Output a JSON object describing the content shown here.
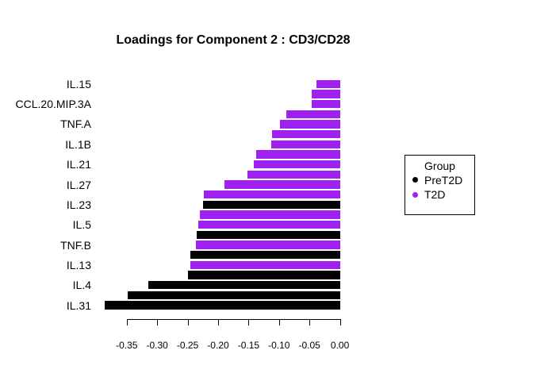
{
  "title": "Loadings for Component 2 : CD3/CD28",
  "legend": {
    "title": "Group",
    "entries": [
      {
        "label": "PreT2D",
        "color": "#000000"
      },
      {
        "label": "T2D",
        "color": "#A020F0"
      }
    ]
  },
  "chart_data": {
    "type": "bar",
    "orientation": "horizontal",
    "title": "Loadings for Component 2 : CD3/CD28",
    "xlabel": "",
    "ylabel": "",
    "xlim": [
      -0.35,
      0.0
    ],
    "grid": false,
    "legend_position": "right-outside",
    "x_ticks": [
      "-0.35",
      "-0.30",
      "-0.25",
      "-0.20",
      "-0.15",
      "-0.10",
      "-0.05",
      "0.00"
    ],
    "x_tick_values": [
      -0.35,
      -0.3,
      -0.25,
      -0.2,
      -0.15,
      -0.1,
      -0.05,
      0.0
    ],
    "note": "23 bars sorted by loading; only every other bar is labeled on the axis",
    "groups": {
      "PreT2D": "#000000",
      "T2D": "#A020F0"
    },
    "bars": [
      {
        "label": "IL.15",
        "value": -0.038,
        "group": "T2D"
      },
      {
        "label": "",
        "value": -0.046,
        "group": "T2D"
      },
      {
        "label": "CCL.20.MIP.3A",
        "value": -0.047,
        "group": "T2D"
      },
      {
        "label": "",
        "value": -0.088,
        "group": "T2D"
      },
      {
        "label": "TNF.A",
        "value": -0.099,
        "group": "T2D"
      },
      {
        "label": "",
        "value": -0.112,
        "group": "T2D"
      },
      {
        "label": "IL.1B",
        "value": -0.113,
        "group": "T2D"
      },
      {
        "label": "",
        "value": -0.138,
        "group": "T2D"
      },
      {
        "label": "IL.21",
        "value": -0.141,
        "group": "T2D"
      },
      {
        "label": "",
        "value": -0.152,
        "group": "T2D"
      },
      {
        "label": "IL.27",
        "value": -0.19,
        "group": "T2D"
      },
      {
        "label": "",
        "value": -0.223,
        "group": "T2D"
      },
      {
        "label": "IL.23",
        "value": -0.225,
        "group": "PreT2D"
      },
      {
        "label": "",
        "value": -0.23,
        "group": "T2D"
      },
      {
        "label": "IL.5",
        "value": -0.232,
        "group": "T2D"
      },
      {
        "label": "",
        "value": -0.235,
        "group": "PreT2D"
      },
      {
        "label": "TNF.B",
        "value": -0.236,
        "group": "T2D"
      },
      {
        "label": "",
        "value": -0.245,
        "group": "PreT2D"
      },
      {
        "label": "IL.13",
        "value": -0.246,
        "group": "T2D"
      },
      {
        "label": "",
        "value": -0.25,
        "group": "PreT2D"
      },
      {
        "label": "IL.4",
        "value": -0.315,
        "group": "PreT2D"
      },
      {
        "label": "",
        "value": -0.348,
        "group": "PreT2D"
      },
      {
        "label": "IL.31",
        "value": -0.386,
        "group": "PreT2D"
      }
    ]
  }
}
